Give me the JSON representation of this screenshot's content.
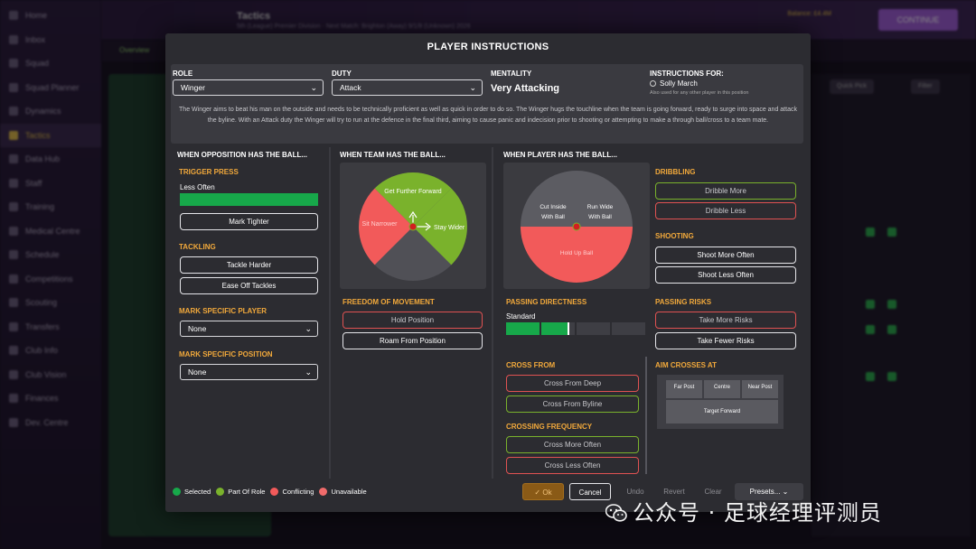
{
  "background": {
    "sidebar_items": [
      "Home",
      "Inbox",
      "Squad",
      "Squad Planner",
      "Dynamics",
      "Tactics",
      "Data Hub",
      "Staff",
      "Training",
      "Medical Centre",
      "Schedule",
      "Competitions",
      "Scouting",
      "Transfers",
      "Club Info",
      "Club Vision",
      "Finances",
      "Dev. Centre"
    ],
    "active_item": 5,
    "title": "Tactics",
    "subtitle": "5th (League) Premier Division · Next Match: Brighton (Away) 9/1/8 (Unknown) 2026",
    "money": "Balance: £4.4M",
    "continue_label": "CONTINUE",
    "subtab": "Overview",
    "right_tags": [
      "Quick Pick",
      "Filter"
    ]
  },
  "modal": {
    "title": "PLAYER INSTRUCTIONS",
    "role_label": "ROLE",
    "role_value": "Winger",
    "duty_label": "DUTY",
    "duty_value": "Attack",
    "mentality_label": "MENTALITY",
    "mentality_value": "Very Attacking",
    "instructions_for_label": "INSTRUCTIONS FOR:",
    "player_name": "Solly March",
    "also_used": "Also used for any other player in this position",
    "description": "The Winger aims to beat his man on the outside and needs to be technically proficient as well as quick in order to do so. The Winger hugs the touchline when the team is going forward, ready to surge into space and attack the byline. With an Attack duty the Winger will try to run at the defence in the final third, aiming to cause panic and indecision prior to shooting or attempting to make a through ball/cross to a team mate."
  },
  "opposition": {
    "header": "WHEN OPPOSITION HAS THE BALL...",
    "trigger_press": "TRIGGER PRESS",
    "trigger_press_value": "Less Often",
    "trigger_press_level": 1.0,
    "mark_tighter": "Mark Tighter",
    "tackling": "TACKLING",
    "tackle_harder": "Tackle Harder",
    "ease_off_tackles": "Ease Off Tackles",
    "mark_specific_player": "MARK SPECIFIC PLAYER",
    "mark_player_value": "None",
    "mark_specific_position": "MARK SPECIFIC POSITION",
    "mark_position_value": "None"
  },
  "team": {
    "header": "WHEN TEAM HAS THE BALL...",
    "get_further_forward": "Get Further Forward",
    "stay_wider": "Stay Wider",
    "sit_narrower": "Sit Narrower",
    "freedom_of_movement": "FREEDOM OF MOVEMENT",
    "hold_position": "Hold Position",
    "roam_from_position": "Roam From Position"
  },
  "player": {
    "header": "WHEN PLAYER HAS THE BALL...",
    "cut_inside": "Cut Inside With Ball",
    "run_wide": "Run Wide With Ball",
    "hold_up_ball": "Hold Up Ball",
    "passing_directness": "PASSING DIRECTNESS",
    "passing_directness_value": "Standard",
    "passing_directness_level": 0.45,
    "cross_from": "CROSS FROM",
    "cross_from_deep": "Cross From Deep",
    "cross_from_byline": "Cross From Byline",
    "crossing_frequency": "CROSSING FREQUENCY",
    "cross_more_often": "Cross More Often",
    "cross_less_often": "Cross Less Often",
    "dribbling": "DRIBBLING",
    "dribble_more": "Dribble More",
    "dribble_less": "Dribble Less",
    "shooting": "SHOOTING",
    "shoot_more_often": "Shoot More Often",
    "shoot_less_often": "Shoot Less Often",
    "passing_risks": "PASSING RISKS",
    "take_more_risks": "Take More Risks",
    "take_fewer_risks": "Take Fewer Risks",
    "aim_crosses_at": "AIM CROSSES AT",
    "far_post": "Far Post",
    "centre": "Centre",
    "near_post": "Near Post",
    "target_forward": "Target Forward"
  },
  "legend": {
    "selected": "Selected",
    "part_of_role": "Part Of Role",
    "conflicting": "Conflicting",
    "unavailable": "Unavailable"
  },
  "footer": {
    "ok": "Ok",
    "cancel": "Cancel",
    "undo": "Undo",
    "revert": "Revert",
    "clear": "Clear",
    "presets": "Presets..."
  },
  "colors": {
    "selected": "#17a84a",
    "part_of_role": "#7ab22c",
    "conflicting": "#f25a5a",
    "unavailable": "#f06b6b",
    "accent": "#f2a93b"
  },
  "watermark": "公众号 · 足球经理评测员"
}
